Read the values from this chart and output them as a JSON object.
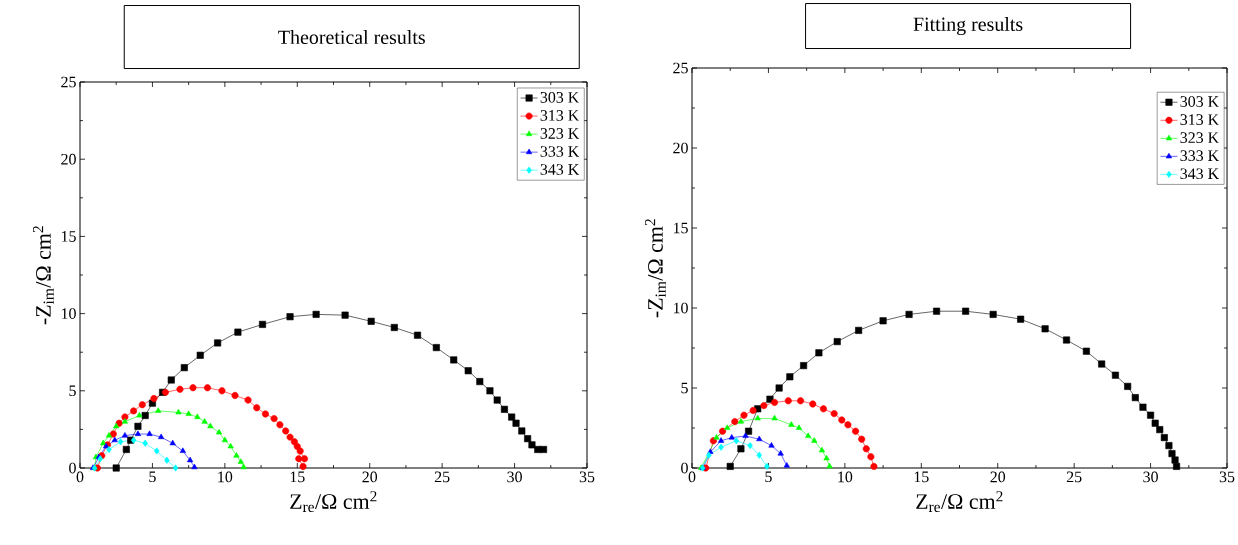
{
  "chart_data": [
    {
      "type": "line",
      "title": "Theoretical results",
      "xlabel": "Z$_{re}$/Ω cm$^{2}$",
      "ylabel": "-Z$_{im}$/Ω cm$^{2}$",
      "xlim": [
        0,
        35
      ],
      "ylim": [
        0,
        25
      ],
      "xticks": [
        0,
        5,
        10,
        15,
        20,
        25,
        30,
        35
      ],
      "yticks": [
        0,
        5,
        10,
        15,
        20,
        25
      ],
      "legend": "top right",
      "grid": false,
      "line_style": "solid",
      "series": [
        {
          "name": "303 K",
          "color": "#000000",
          "marker": "square",
          "x": [
            2.5,
            3.2,
            3.5,
            4.0,
            4.5,
            5.0,
            5.7,
            6.3,
            7.2,
            8.3,
            9.5,
            10.9,
            12.6,
            14.5,
            16.3,
            18.3,
            20.1,
            21.7,
            23.3,
            24.6,
            25.8,
            26.8,
            27.6,
            28.3,
            28.8,
            29.3,
            29.8,
            30.1,
            30.5,
            30.9,
            31.2,
            31.6,
            32.0
          ],
          "values": [
            0,
            1.2,
            1.8,
            2.7,
            3.4,
            4.2,
            4.9,
            5.7,
            6.5,
            7.3,
            8.1,
            8.8,
            9.3,
            9.8,
            9.95,
            9.9,
            9.5,
            9.1,
            8.6,
            7.8,
            7.0,
            6.3,
            5.6,
            5.0,
            4.4,
            3.8,
            3.3,
            2.9,
            2.4,
            1.9,
            1.5,
            1.2,
            1.2
          ]
        },
        {
          "name": "313 K",
          "color": "#ff0000",
          "marker": "circle",
          "x": [
            1.2,
            1.5,
            1.9,
            2.3,
            2.7,
            3.1,
            3.7,
            4.3,
            5.1,
            5.9,
            6.9,
            7.8,
            8.8,
            9.8,
            10.7,
            11.6,
            12.2,
            12.8,
            13.4,
            13.8,
            14.2,
            14.5,
            14.8,
            15.0,
            15.2,
            15.5,
            15.1,
            15.4
          ],
          "values": [
            0,
            0.8,
            1.5,
            2.2,
            2.9,
            3.3,
            3.7,
            4.1,
            4.5,
            4.9,
            5.1,
            5.2,
            5.2,
            5.0,
            4.7,
            4.4,
            3.9,
            3.5,
            3.2,
            2.8,
            2.4,
            2.0,
            1.7,
            1.4,
            1.1,
            0.6,
            0.6,
            0.1
          ]
        },
        {
          "name": "323 K",
          "color": "#00ff00",
          "marker": "triangle",
          "x": [
            1.0,
            1.1,
            1.6,
            2.0,
            2.5,
            3.1,
            4.1,
            5.4,
            6.8,
            7.5,
            8.1,
            8.6,
            9.0,
            9.6,
            10.0,
            10.4,
            10.8,
            11.1,
            11.3
          ],
          "values": [
            0,
            0.7,
            1.6,
            2.1,
            2.7,
            3.0,
            3.4,
            3.7,
            3.6,
            3.5,
            3.3,
            3.0,
            2.7,
            2.3,
            1.8,
            1.4,
            0.8,
            0.4,
            0.05
          ]
        },
        {
          "name": "333 K",
          "color": "#0000ff",
          "marker": "triangle",
          "x": [
            0.9,
            1.3,
            1.8,
            2.4,
            3.1,
            4.0,
            4.8,
            5.6,
            6.4,
            7.1,
            7.6,
            7.9
          ],
          "values": [
            0,
            0.7,
            1.4,
            1.8,
            2.1,
            2.2,
            2.2,
            2.0,
            1.6,
            1.1,
            0.5,
            0.05
          ]
        },
        {
          "name": "343 K",
          "color": "#00ffff",
          "marker": "diamond",
          "x": [
            1.0,
            1.4,
            2.0,
            2.8,
            3.7,
            4.5,
            5.3,
            6.0,
            6.6
          ],
          "values": [
            0,
            0.6,
            1.2,
            1.7,
            1.8,
            1.6,
            1.1,
            0.5,
            0
          ]
        }
      ]
    },
    {
      "type": "line",
      "title": "Fitting results",
      "xlabel": "Z$_{re}$/Ω cm$^{2}$",
      "ylabel": "-Z$_{im}$/Ω cm$^{2}$",
      "xlim": [
        0,
        35
      ],
      "ylim": [
        0,
        25
      ],
      "xticks": [
        0,
        5,
        10,
        15,
        20,
        25,
        30,
        35
      ],
      "yticks": [
        0,
        5,
        10,
        15,
        20,
        25
      ],
      "legend": "top right",
      "grid": false,
      "line_style": "solid",
      "series": [
        {
          "name": "303 K",
          "color": "#000000",
          "marker": "square",
          "x": [
            2.5,
            3.2,
            3.7,
            4.3,
            5.1,
            5.7,
            6.4,
            7.3,
            8.3,
            9.5,
            10.9,
            12.5,
            14.2,
            16.0,
            17.9,
            19.7,
            21.5,
            23.1,
            24.5,
            25.8,
            26.8,
            27.7,
            28.5,
            29.0,
            29.5,
            30.0,
            30.3,
            30.6,
            30.9,
            31.2,
            31.4,
            31.6,
            31.7
          ],
          "values": [
            0.1,
            1.2,
            2.3,
            3.7,
            4.3,
            5.0,
            5.7,
            6.4,
            7.2,
            7.9,
            8.6,
            9.2,
            9.6,
            9.8,
            9.8,
            9.6,
            9.3,
            8.7,
            8.0,
            7.3,
            6.5,
            5.8,
            5.1,
            4.4,
            3.8,
            3.3,
            2.8,
            2.4,
            1.9,
            1.4,
            0.9,
            0.5,
            0.1
          ]
        },
        {
          "name": "313 K",
          "color": "#ff0000",
          "marker": "circle",
          "x": [
            0.9,
            1.4,
            2.0,
            2.8,
            3.4,
            4.0,
            4.7,
            5.4,
            6.3,
            7.1,
            7.9,
            8.6,
            9.3,
            9.8,
            10.2,
            10.7,
            11.1,
            11.4,
            11.7,
            11.9
          ],
          "values": [
            0,
            1.7,
            2.3,
            2.9,
            3.3,
            3.6,
            3.9,
            4.1,
            4.2,
            4.2,
            4.0,
            3.7,
            3.4,
            3.0,
            2.7,
            2.3,
            1.8,
            1.2,
            0.7,
            0.1
          ]
        },
        {
          "name": "323 K",
          "color": "#00ff00",
          "marker": "triangle",
          "x": [
            0.6,
            1.1,
            1.6,
            2.3,
            3.2,
            4.3,
            5.4,
            6.5,
            7.0,
            7.6,
            8.0,
            8.5,
            8.8,
            9.0
          ],
          "values": [
            0,
            null,
            1.9,
            2.5,
            2.9,
            3.1,
            3.1,
            2.7,
            2.5,
            2.0,
            1.7,
            1.1,
            0.6,
            0.1
          ]
        },
        {
          "name": "333 K",
          "color": "#0000ff",
          "marker": "triangle",
          "x": [
            0.7,
            1.2,
            1.9,
            2.6,
            3.5,
            4.4,
            5.2,
            5.8,
            6.2
          ],
          "values": [
            0,
            1.0,
            1.7,
            1.9,
            2.0,
            1.8,
            1.4,
            0.9,
            0.15
          ]
        },
        {
          "name": "343 K",
          "color": "#00ffff",
          "marker": "diamond",
          "x": [
            0.7,
            1.1,
            1.9,
            2.9,
            3.8,
            4.4,
            4.9
          ],
          "values": [
            0,
            0.8,
            1.3,
            1.7,
            1.4,
            0.8,
            0.1
          ]
        }
      ]
    }
  ]
}
